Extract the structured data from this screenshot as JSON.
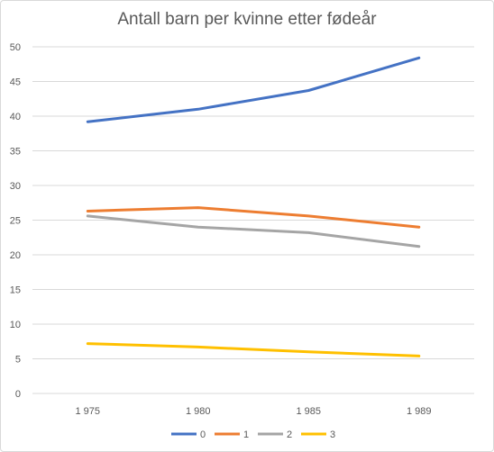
{
  "chart_data": {
    "type": "line",
    "title": "Antall barn per kvinne etter fødeår",
    "categories": [
      "1 975",
      "1 980",
      "1 985",
      "1 989"
    ],
    "ylim": [
      0,
      50
    ],
    "yticks": [
      "0",
      "5",
      "10",
      "15",
      "20",
      "25",
      "30",
      "35",
      "40",
      "45",
      "50"
    ],
    "grid": true,
    "legend_position": "bottom",
    "series": [
      {
        "name": "0",
        "color": "#4472C4",
        "values": [
          39.2,
          41.0,
          43.7,
          48.4
        ]
      },
      {
        "name": "1",
        "color": "#ED7D31",
        "values": [
          26.3,
          26.8,
          25.6,
          24.0
        ]
      },
      {
        "name": "2",
        "color": "#A5A5A5",
        "values": [
          25.6,
          24.0,
          23.2,
          21.2
        ]
      },
      {
        "name": "3",
        "color": "#FFC000",
        "values": [
          7.2,
          6.7,
          6.0,
          5.4
        ]
      }
    ]
  }
}
